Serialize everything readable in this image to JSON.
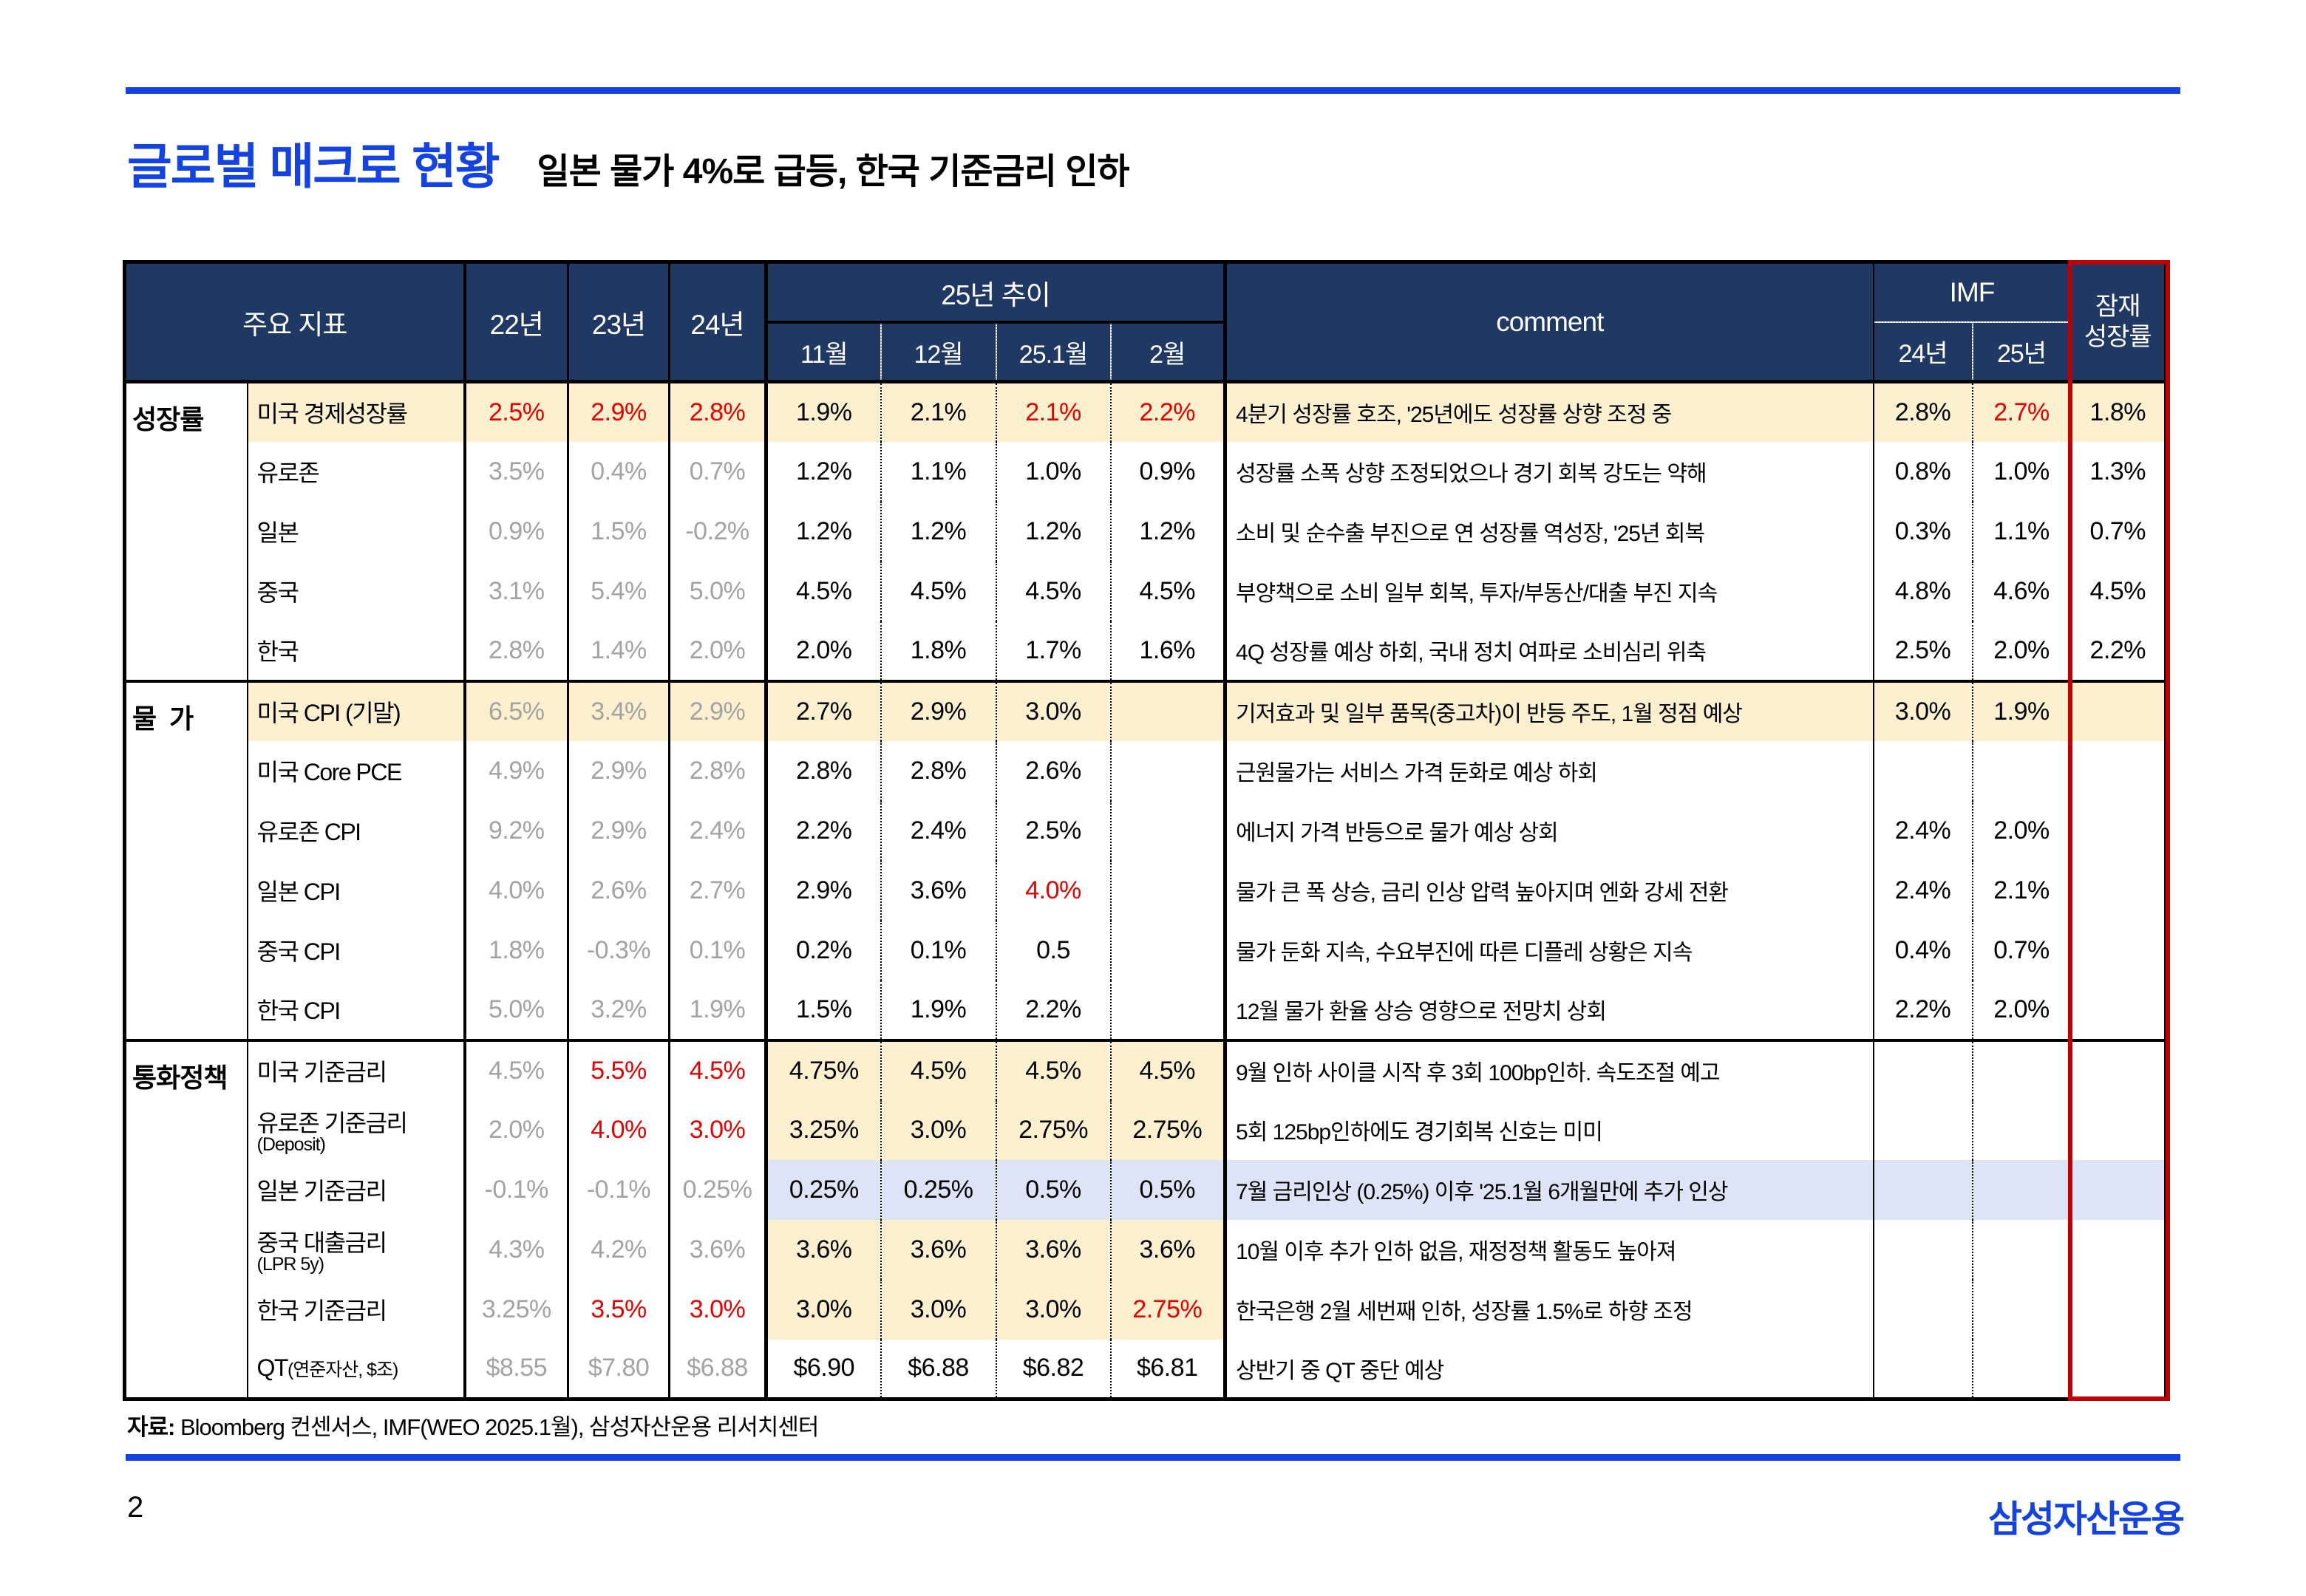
{
  "title": {
    "main": "글로벌 매크로 현황",
    "sub": "일본 물가 4%로 급등, 한국 기준금리 인하"
  },
  "colors": {
    "accent_blue": "#1443e3",
    "header_navy": "#1f3864",
    "highlight_yellow": "#fcf0ce",
    "highlight_blue": "#dce4f5",
    "red_text": "#e60000",
    "gray_text": "#a3a3a3",
    "frame_red": "#c00000"
  },
  "table": {
    "header": {
      "main_col": "주요 지표",
      "y22": "22년",
      "y23": "23년",
      "y24": "24년",
      "trend": "25년 추이",
      "months": [
        "11월",
        "12월",
        "25.1월",
        "2월"
      ],
      "comment": "comment",
      "imf": "IMF",
      "imf_years": [
        "24년",
        "25년"
      ],
      "potential_line1": "잠재",
      "potential_line2": "성장률"
    },
    "sections": [
      {
        "label": "성장률",
        "rows": [
          {
            "name": "미국 경제성장률",
            "sub": "",
            "inline": false,
            "hl": "full",
            "y": [
              [
                "2.5%",
                "r"
              ],
              [
                "2.9%",
                "r"
              ],
              [
                "2.8%",
                "r"
              ]
            ],
            "m": [
              [
                "1.9%",
                ""
              ],
              [
                "2.1%",
                ""
              ],
              [
                "2.1%",
                "r"
              ],
              [
                "2.2%",
                "r"
              ]
            ],
            "comment": "4분기 성장률 호조, '25년에도 성장률 상향 조정 중",
            "imf": [
              [
                "2.8%",
                ""
              ],
              [
                "2.7%",
                "r"
              ]
            ],
            "pot": "1.8%"
          },
          {
            "name": "유로존",
            "sub": "",
            "inline": false,
            "hl": "",
            "y": [
              [
                "3.5%",
                "g"
              ],
              [
                "0.4%",
                "g"
              ],
              [
                "0.7%",
                "g"
              ]
            ],
            "m": [
              [
                "1.2%",
                ""
              ],
              [
                "1.1%",
                ""
              ],
              [
                "1.0%",
                ""
              ],
              [
                "0.9%",
                ""
              ]
            ],
            "comment": "성장률 소폭 상향 조정되었으나 경기 회복 강도는 약해",
            "imf": [
              [
                "0.8%",
                ""
              ],
              [
                "1.0%",
                ""
              ]
            ],
            "pot": "1.3%"
          },
          {
            "name": "일본",
            "sub": "",
            "inline": false,
            "hl": "",
            "y": [
              [
                "0.9%",
                "g"
              ],
              [
                "1.5%",
                "g"
              ],
              [
                "-0.2%",
                "g"
              ]
            ],
            "m": [
              [
                "1.2%",
                ""
              ],
              [
                "1.2%",
                ""
              ],
              [
                "1.2%",
                ""
              ],
              [
                "1.2%",
                ""
              ]
            ],
            "comment": "소비 및 순수출 부진으로 연 성장률 역성장, '25년 회복",
            "imf": [
              [
                "0.3%",
                ""
              ],
              [
                "1.1%",
                ""
              ]
            ],
            "pot": "0.7%"
          },
          {
            "name": "중국",
            "sub": "",
            "inline": false,
            "hl": "",
            "y": [
              [
                "3.1%",
                "g"
              ],
              [
                "5.4%",
                "g"
              ],
              [
                "5.0%",
                "g"
              ]
            ],
            "m": [
              [
                "4.5%",
                ""
              ],
              [
                "4.5%",
                ""
              ],
              [
                "4.5%",
                ""
              ],
              [
                "4.5%",
                ""
              ]
            ],
            "comment": "부양책으로 소비 일부 회복, 투자/부동산/대출 부진 지속",
            "imf": [
              [
                "4.8%",
                ""
              ],
              [
                "4.6%",
                ""
              ]
            ],
            "pot": "4.5%"
          },
          {
            "name": "한국",
            "sub": "",
            "inline": false,
            "hl": "",
            "y": [
              [
                "2.8%",
                "g"
              ],
              [
                "1.4%",
                "g"
              ],
              [
                "2.0%",
                "g"
              ]
            ],
            "m": [
              [
                "2.0%",
                ""
              ],
              [
                "1.8%",
                ""
              ],
              [
                "1.7%",
                ""
              ],
              [
                "1.6%",
                ""
              ]
            ],
            "comment": "4Q 성장률 예상 하회, 국내 정치 여파로 소비심리 위축",
            "imf": [
              [
                "2.5%",
                ""
              ],
              [
                "2.0%",
                ""
              ]
            ],
            "pot": "2.2%"
          }
        ]
      },
      {
        "label": "물  가",
        "rows": [
          {
            "name": "미국 CPI (기말)",
            "sub": "",
            "inline": false,
            "hl": "full",
            "y": [
              [
                "6.5%",
                "g"
              ],
              [
                "3.4%",
                "g"
              ],
              [
                "2.9%",
                "g"
              ]
            ],
            "m": [
              [
                "2.7%",
                ""
              ],
              [
                "2.9%",
                ""
              ],
              [
                "3.0%",
                ""
              ],
              [
                "",
                ""
              ]
            ],
            "comment": "기저효과 및 일부 품목(중고차)이 반등 주도, 1월 정점 예상",
            "imf": [
              [
                "3.0%",
                ""
              ],
              [
                "1.9%",
                ""
              ]
            ],
            "pot": ""
          },
          {
            "name": "미국 Core PCE",
            "sub": "",
            "inline": false,
            "hl": "",
            "y": [
              [
                "4.9%",
                "g"
              ],
              [
                "2.9%",
                "g"
              ],
              [
                "2.8%",
                "g"
              ]
            ],
            "m": [
              [
                "2.8%",
                ""
              ],
              [
                "2.8%",
                ""
              ],
              [
                "2.6%",
                ""
              ],
              [
                "",
                ""
              ]
            ],
            "comment": "근원물가는 서비스 가격 둔화로 예상 하회",
            "imf": [
              [
                "",
                ""
              ],
              [
                "",
                ""
              ]
            ],
            "pot": ""
          },
          {
            "name": "유로존 CPI",
            "sub": "",
            "inline": false,
            "hl": "",
            "y": [
              [
                "9.2%",
                "g"
              ],
              [
                "2.9%",
                "g"
              ],
              [
                "2.4%",
                "g"
              ]
            ],
            "m": [
              [
                "2.2%",
                ""
              ],
              [
                "2.4%",
                ""
              ],
              [
                "2.5%",
                ""
              ],
              [
                "",
                ""
              ]
            ],
            "comment": "에너지 가격 반등으로 물가 예상 상회",
            "imf": [
              [
                "2.4%",
                ""
              ],
              [
                "2.0%",
                ""
              ]
            ],
            "pot": ""
          },
          {
            "name": "일본 CPI",
            "sub": "",
            "inline": false,
            "hl": "",
            "y": [
              [
                "4.0%",
                "g"
              ],
              [
                "2.6%",
                "g"
              ],
              [
                "2.7%",
                "g"
              ]
            ],
            "m": [
              [
                "2.9%",
                ""
              ],
              [
                "3.6%",
                ""
              ],
              [
                "4.0%",
                "r"
              ],
              [
                "",
                ""
              ]
            ],
            "comment": "물가 큰 폭 상승, 금리 인상 압력 높아지며 엔화 강세 전환",
            "imf": [
              [
                "2.4%",
                ""
              ],
              [
                "2.1%",
                ""
              ]
            ],
            "pot": ""
          },
          {
            "name": "중국 CPI",
            "sub": "",
            "inline": false,
            "hl": "",
            "y": [
              [
                "1.8%",
                "g"
              ],
              [
                "-0.3%",
                "g"
              ],
              [
                "0.1%",
                "g"
              ]
            ],
            "m": [
              [
                "0.2%",
                ""
              ],
              [
                "0.1%",
                ""
              ],
              [
                "0.5",
                ""
              ],
              [
                "",
                ""
              ]
            ],
            "comment": "물가 둔화 지속, 수요부진에 따른 디플레 상황은 지속",
            "imf": [
              [
                "0.4%",
                ""
              ],
              [
                "0.7%",
                ""
              ]
            ],
            "pot": ""
          },
          {
            "name": "한국 CPI",
            "sub": "",
            "inline": false,
            "hl": "",
            "y": [
              [
                "5.0%",
                "g"
              ],
              [
                "3.2%",
                "g"
              ],
              [
                "1.9%",
                "g"
              ]
            ],
            "m": [
              [
                "1.5%",
                ""
              ],
              [
                "1.9%",
                ""
              ],
              [
                "2.2%",
                ""
              ],
              [
                "",
                ""
              ]
            ],
            "comment": "12월 물가 환율 상승 영향으로 전망치 상회",
            "imf": [
              [
                "2.2%",
                ""
              ],
              [
                "2.0%",
                ""
              ]
            ],
            "pot": ""
          }
        ]
      },
      {
        "label": "통화정책",
        "rows": [
          {
            "name": "미국 기준금리",
            "sub": "",
            "inline": false,
            "hl": "months",
            "y": [
              [
                "4.5%",
                "g"
              ],
              [
                "5.5%",
                "r"
              ],
              [
                "4.5%",
                "r"
              ]
            ],
            "m": [
              [
                "4.75%",
                ""
              ],
              [
                "4.5%",
                ""
              ],
              [
                "4.5%",
                ""
              ],
              [
                "4.5%",
                ""
              ]
            ],
            "comment": "9월 인하 사이클 시작 후 3회 100bp인하. 속도조절 예고",
            "imf": [
              [
                "",
                ""
              ],
              [
                "",
                ""
              ]
            ],
            "pot": ""
          },
          {
            "name": "유로존 기준금리",
            "sub": "(Deposit)",
            "inline": false,
            "hl": "months",
            "y": [
              [
                "2.0%",
                "g"
              ],
              [
                "4.0%",
                "r"
              ],
              [
                "3.0%",
                "r"
              ]
            ],
            "m": [
              [
                "3.25%",
                ""
              ],
              [
                "3.0%",
                ""
              ],
              [
                "2.75%",
                ""
              ],
              [
                "2.75%",
                ""
              ]
            ],
            "comment": "5회 125bp인하에도 경기회복 신호는 미미",
            "imf": [
              [
                "",
                ""
              ],
              [
                "",
                ""
              ]
            ],
            "pot": ""
          },
          {
            "name": "일본 기준금리",
            "sub": "",
            "inline": false,
            "hl": "blue",
            "y": [
              [
                "-0.1%",
                "g"
              ],
              [
                "-0.1%",
                "g"
              ],
              [
                "0.25%",
                "g"
              ]
            ],
            "m": [
              [
                "0.25%",
                ""
              ],
              [
                "0.25%",
                ""
              ],
              [
                "0.5%",
                ""
              ],
              [
                "0.5%",
                ""
              ]
            ],
            "comment": "7월 금리인상 (0.25%) 이후 '25.1월 6개월만에 추가 인상",
            "imf": [
              [
                "",
                ""
              ],
              [
                "",
                ""
              ]
            ],
            "pot": ""
          },
          {
            "name": "중국 대출금리",
            "sub": "(LPR 5y)",
            "inline": false,
            "hl": "months",
            "y": [
              [
                "4.3%",
                "g"
              ],
              [
                "4.2%",
                "g"
              ],
              [
                "3.6%",
                "g"
              ]
            ],
            "m": [
              [
                "3.6%",
                ""
              ],
              [
                "3.6%",
                ""
              ],
              [
                "3.6%",
                ""
              ],
              [
                "3.6%",
                ""
              ]
            ],
            "comment": "10월 이후 추가 인하 없음, 재정정책 활동도 높아져",
            "imf": [
              [
                "",
                ""
              ],
              [
                "",
                ""
              ]
            ],
            "pot": ""
          },
          {
            "name": "한국 기준금리",
            "sub": "",
            "inline": false,
            "hl": "months",
            "y": [
              [
                "3.25%",
                "g"
              ],
              [
                "3.5%",
                "r"
              ],
              [
                "3.0%",
                "r"
              ]
            ],
            "m": [
              [
                "3.0%",
                ""
              ],
              [
                "3.0%",
                ""
              ],
              [
                "3.0%",
                ""
              ],
              [
                "2.75%",
                "r"
              ]
            ],
            "comment": "한국은행 2월 세번째 인하, 성장률 1.5%로 하향 조정",
            "imf": [
              [
                "",
                ""
              ],
              [
                "",
                ""
              ]
            ],
            "pot": ""
          },
          {
            "name": "QT",
            "sub": "(연준자산, $조)",
            "inline": true,
            "hl": "",
            "y": [
              [
                "$8.55",
                "g"
              ],
              [
                "$7.80",
                "g"
              ],
              [
                "$6.88",
                "g"
              ]
            ],
            "m": [
              [
                "$6.90",
                ""
              ],
              [
                "$6.88",
                ""
              ],
              [
                "$6.82",
                ""
              ],
              [
                "$6.81",
                ""
              ]
            ],
            "comment": "상반기 중 QT 중단 예상",
            "imf": [
              [
                "",
                ""
              ],
              [
                "",
                ""
              ]
            ],
            "pot": ""
          }
        ]
      }
    ]
  },
  "footer": {
    "source_label": "자료:",
    "source_rest": " Bloomberg 컨센서스, IMF(WEO 2025.1월), 삼성자산운용 리서치센터",
    "page_number": "2",
    "logo": "삼성자산운용"
  }
}
